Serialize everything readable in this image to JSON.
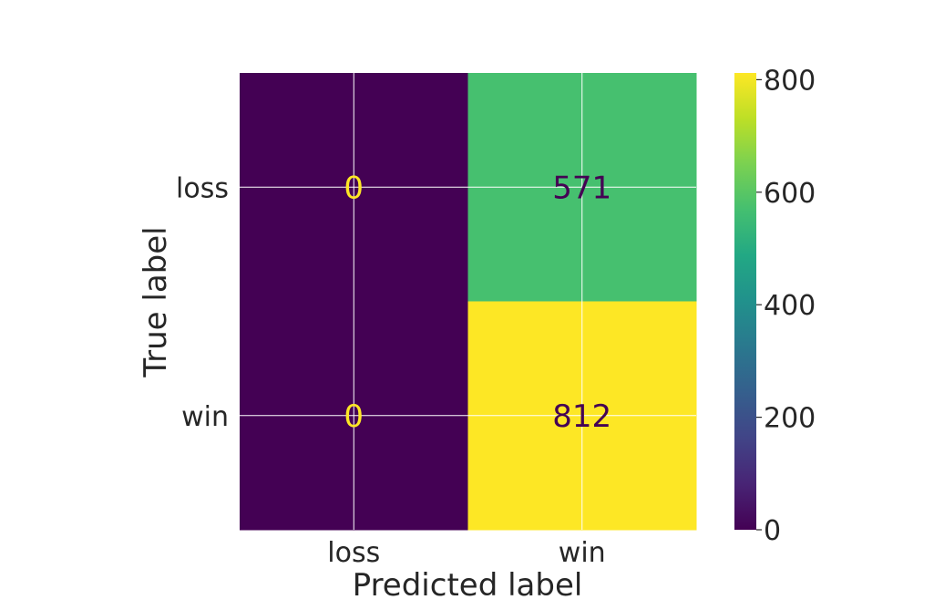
{
  "chart_data": {
    "type": "heatmap",
    "title": "",
    "xlabel": "Predicted label",
    "ylabel": "True label",
    "x_categories": [
      "loss",
      "win"
    ],
    "y_categories": [
      "loss",
      "win"
    ],
    "values": [
      [
        0,
        571
      ],
      [
        0,
        812
      ]
    ],
    "colormap": "viridis",
    "colorbar": {
      "vmin": 0,
      "vmax": 812,
      "ticks": [
        0,
        200,
        400,
        600,
        800
      ]
    },
    "grid": true,
    "colors": {
      "grid": "#ffffff",
      "text_dark": "#262626",
      "viridis_min": "#440154",
      "viridis_max": "#fde725"
    }
  }
}
